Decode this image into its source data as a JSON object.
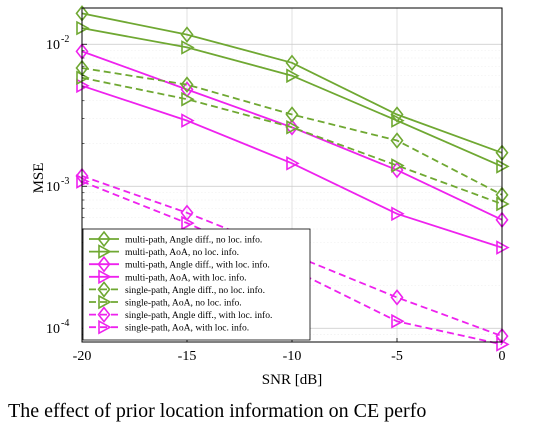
{
  "chart_data": {
    "type": "line",
    "xlabel": "SNR [dB]",
    "ylabel": "MSE",
    "x": [
      -20,
      -15,
      -10,
      -5,
      0
    ],
    "xlim": [
      -20,
      0
    ],
    "ylim": [
      8e-05,
      0.018
    ],
    "yscale": "log",
    "grid": true,
    "legend_position": "bottom-left",
    "x_tick_labels": [
      "-20",
      "-15",
      "-10",
      "-5",
      "0"
    ],
    "y_ticks": [
      {
        "value": 0.0001,
        "base": "10",
        "exp": "-4"
      },
      {
        "value": 0.001,
        "base": "10",
        "exp": "-3"
      },
      {
        "value": 0.01,
        "base": "10",
        "exp": "-2"
      }
    ],
    "series": [
      {
        "name": "multi-path, Angle diff., no loc. info.",
        "color": "#6fa832",
        "dash": "solid",
        "marker": "diamond",
        "values": [
          0.0165,
          0.0117,
          0.0074,
          0.0032,
          0.00172
        ]
      },
      {
        "name": "multi-path, AoA, no loc. info.",
        "color": "#6fa832",
        "dash": "solid",
        "marker": "triangle-right",
        "values": [
          0.013,
          0.0095,
          0.006,
          0.0029,
          0.00138
        ]
      },
      {
        "name": "multi-path, Angle diff., with loc. info.",
        "color": "#ee22ee",
        "dash": "solid",
        "marker": "diamond",
        "values": [
          0.0089,
          0.0048,
          0.0026,
          0.0013,
          0.00058
        ]
      },
      {
        "name": "multi-path, AoA, with loc. info.",
        "color": "#ee22ee",
        "dash": "solid",
        "marker": "triangle-right",
        "values": [
          0.0051,
          0.0029,
          0.00145,
          0.00064,
          0.00037
        ]
      },
      {
        "name": "single-path, Angle diff., no loc. info.",
        "color": "#6fa832",
        "dash": "dashed",
        "marker": "diamond",
        "values": [
          0.0068,
          0.0052,
          0.0032,
          0.0021,
          0.00087
        ]
      },
      {
        "name": "single-path, AoA, no loc. info.",
        "color": "#6fa832",
        "dash": "dashed",
        "marker": "triangle-right",
        "values": [
          0.0058,
          0.0041,
          0.0026,
          0.0014,
          0.00075
        ]
      },
      {
        "name": "single-path, Angle diff., with loc. info.",
        "color": "#ee22ee",
        "dash": "dashed",
        "marker": "diamond",
        "values": [
          0.00118,
          0.00065,
          0.00033,
          0.000165,
          8.8e-05
        ]
      },
      {
        "name": "single-path, AoA, with loc. info.",
        "color": "#ee22ee",
        "dash": "dashed",
        "marker": "triangle-right",
        "values": [
          0.00108,
          0.00055,
          0.00026,
          0.000112,
          7.7e-05
        ]
      }
    ]
  },
  "caption": "The effect of prior location information on CE perfo"
}
